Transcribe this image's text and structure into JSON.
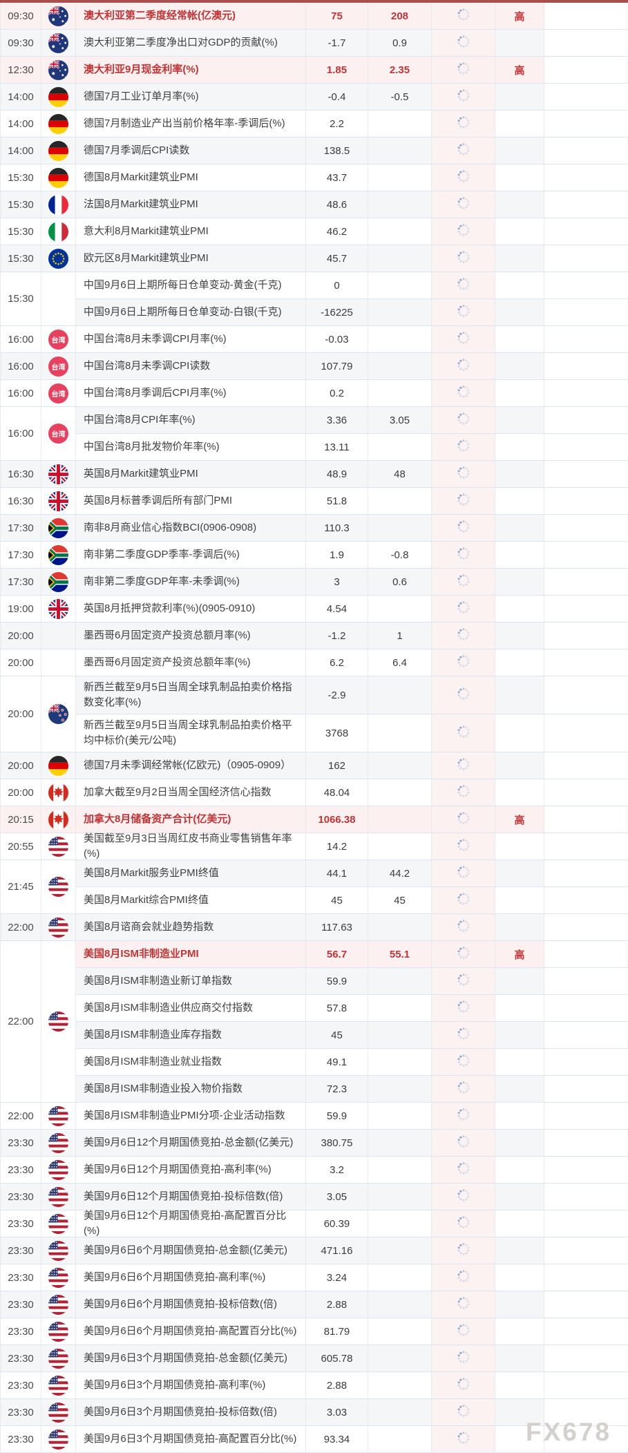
{
  "watermark": "FX678",
  "importance_high_label": "高",
  "colors": {
    "accent_red": "#c13435",
    "highlight_row_bg": "#fdf0f0",
    "spinner_column_bg": "#fcf2f2",
    "top_border": "#a94f4f",
    "row_border": "#dbe4f0",
    "stripe_bg": "#f5f6f7",
    "taiwan_badge_bg": "#e7415f"
  },
  "icons": {
    "spinner": "loading-spinner-icon"
  },
  "table": {
    "groups": [
      {
        "time": "09:30",
        "flag": "flag-australia",
        "rows": [
          {
            "event": "澳大利亚第二季度经常帐(亿澳元)",
            "previous": "75",
            "forecast": "208",
            "importance": "高",
            "highlight": true
          }
        ]
      },
      {
        "time": "09:30",
        "flag": "flag-australia",
        "rows": [
          {
            "event": "澳大利亚第二季度净出口对GDP的贡献(%)",
            "previous": "-1.7",
            "forecast": "0.9",
            "importance": "",
            "highlight": false
          }
        ]
      },
      {
        "time": "12:30",
        "flag": "flag-australia",
        "rows": [
          {
            "event": "澳大利亚9月现金利率(%)",
            "previous": "1.85",
            "forecast": "2.35",
            "importance": "高",
            "highlight": true
          }
        ]
      },
      {
        "time": "14:00",
        "flag": "flag-germany",
        "rows": [
          {
            "event": "德国7月工业订单月率(%)",
            "previous": "-0.4",
            "forecast": "-0.5",
            "importance": "",
            "highlight": false
          }
        ]
      },
      {
        "time": "14:00",
        "flag": "flag-germany",
        "rows": [
          {
            "event": "德国7月制造业产出当前价格年率-季调后(%)",
            "previous": "2.2",
            "forecast": "",
            "importance": "",
            "highlight": false
          }
        ]
      },
      {
        "time": "14:00",
        "flag": "flag-germany",
        "rows": [
          {
            "event": "德国7月季调后CPI读数",
            "previous": "138.5",
            "forecast": "",
            "importance": "",
            "highlight": false
          }
        ]
      },
      {
        "time": "15:30",
        "flag": "flag-germany",
        "rows": [
          {
            "event": "德国8月Markit建筑业PMI",
            "previous": "43.7",
            "forecast": "",
            "importance": "",
            "highlight": false
          }
        ]
      },
      {
        "time": "15:30",
        "flag": "flag-france",
        "rows": [
          {
            "event": "法国8月Markit建筑业PMI",
            "previous": "48.6",
            "forecast": "",
            "importance": "",
            "highlight": false
          }
        ]
      },
      {
        "time": "15:30",
        "flag": "flag-italy",
        "rows": [
          {
            "event": "意大利8月Markit建筑业PMI",
            "previous": "46.2",
            "forecast": "",
            "importance": "",
            "highlight": false
          }
        ]
      },
      {
        "time": "15:30",
        "flag": "flag-eu",
        "rows": [
          {
            "event": "欧元区8月Markit建筑业PMI",
            "previous": "45.7",
            "forecast": "",
            "importance": "",
            "highlight": false
          }
        ]
      },
      {
        "time": "15:30",
        "flag": "none",
        "rows": [
          {
            "event": "中国9月6日上期所每日仓单变动-黄金(千克)",
            "previous": "0",
            "forecast": "",
            "importance": "",
            "highlight": false
          },
          {
            "event": "中国9月6日上期所每日仓单变动-白银(千克)",
            "previous": "-16225",
            "forecast": "",
            "importance": "",
            "highlight": false
          }
        ]
      },
      {
        "time": "16:00",
        "flag": "badge-taiwan",
        "rows": [
          {
            "event": "中国台湾8月未季调CPI月率(%)",
            "previous": "-0.03",
            "forecast": "",
            "importance": "",
            "highlight": false
          }
        ]
      },
      {
        "time": "16:00",
        "flag": "badge-taiwan",
        "rows": [
          {
            "event": "中国台湾8月未季调CPI读数",
            "previous": "107.79",
            "forecast": "",
            "importance": "",
            "highlight": false
          }
        ]
      },
      {
        "time": "16:00",
        "flag": "badge-taiwan",
        "rows": [
          {
            "event": "中国台湾8月季调后CPI月率(%)",
            "previous": "0.2",
            "forecast": "",
            "importance": "",
            "highlight": false
          }
        ]
      },
      {
        "time": "16:00",
        "flag": "badge-taiwan",
        "rows": [
          {
            "event": "中国台湾8月CPI年率(%)",
            "previous": "3.36",
            "forecast": "3.05",
            "importance": "",
            "highlight": false
          },
          {
            "event": "中国台湾8月批发物价年率(%)",
            "previous": "13.11",
            "forecast": "",
            "importance": "",
            "highlight": false
          }
        ]
      },
      {
        "time": "16:30",
        "flag": "flag-uk",
        "rows": [
          {
            "event": "英国8月Markit建筑业PMI",
            "previous": "48.9",
            "forecast": "48",
            "importance": "",
            "highlight": false
          }
        ]
      },
      {
        "time": "16:30",
        "flag": "flag-uk",
        "rows": [
          {
            "event": "英国8月标普季调后所有部门PMI",
            "previous": "51.8",
            "forecast": "",
            "importance": "",
            "highlight": false
          }
        ]
      },
      {
        "time": "17:30",
        "flag": "flag-south-africa",
        "rows": [
          {
            "event": "南非8月商业信心指数BCI(0906-0908)",
            "previous": "110.3",
            "forecast": "",
            "importance": "",
            "highlight": false
          }
        ]
      },
      {
        "time": "17:30",
        "flag": "flag-south-africa",
        "rows": [
          {
            "event": "南非第二季度GDP季率-季调后(%)",
            "previous": "1.9",
            "forecast": "-0.8",
            "importance": "",
            "highlight": false
          }
        ]
      },
      {
        "time": "17:30",
        "flag": "flag-south-africa",
        "rows": [
          {
            "event": "南非第二季度GDP年率-未季调(%)",
            "previous": "3",
            "forecast": "0.6",
            "importance": "",
            "highlight": false
          }
        ]
      },
      {
        "time": "19:00",
        "flag": "flag-uk",
        "rows": [
          {
            "event": "英国8月抵押贷款利率(%)(0905-0910)",
            "previous": "4.54",
            "forecast": "",
            "importance": "",
            "highlight": false
          }
        ]
      },
      {
        "time": "20:00",
        "flag": "none",
        "rows": [
          {
            "event": "墨西哥6月固定资产投资总额月率(%)",
            "previous": "-1.2",
            "forecast": "1",
            "importance": "",
            "highlight": false
          }
        ]
      },
      {
        "time": "20:00",
        "flag": "none",
        "rows": [
          {
            "event": "墨西哥6月固定资产投资总额年率(%)",
            "previous": "6.2",
            "forecast": "6.4",
            "importance": "",
            "highlight": false
          }
        ]
      },
      {
        "time": "20:00",
        "flag": "flag-new-zealand",
        "rows": [
          {
            "event": "新西兰截至9月5日当周全球乳制品拍卖价格指数变化率(%)",
            "previous": "-2.9",
            "forecast": "",
            "importance": "",
            "highlight": false,
            "tall": true
          },
          {
            "event": "新西兰截至9月5日当周全球乳制品拍卖价格平均中标价(美元/公吨)",
            "previous": "3768",
            "forecast": "",
            "importance": "",
            "highlight": false,
            "tall": true
          }
        ]
      },
      {
        "time": "20:00",
        "flag": "flag-germany",
        "rows": [
          {
            "event": "德国7月未季调经常帐(亿欧元)（0905-0909）",
            "previous": "162",
            "forecast": "",
            "importance": "",
            "highlight": false
          }
        ]
      },
      {
        "time": "20:00",
        "flag": "flag-canada",
        "rows": [
          {
            "event": "加拿大截至9月2日当周全国经济信心指数",
            "previous": "48.04",
            "forecast": "",
            "importance": "",
            "highlight": false
          }
        ]
      },
      {
        "time": "20:15",
        "flag": "flag-canada",
        "rows": [
          {
            "event": "加拿大8月储备资产合计(亿美元)",
            "previous": "1066.38",
            "forecast": "",
            "importance": "高",
            "highlight": true
          }
        ]
      },
      {
        "time": "20:55",
        "flag": "flag-us",
        "rows": [
          {
            "event": "美国截至9月3日当周红皮书商业零售销售年率(%)",
            "previous": "14.2",
            "forecast": "",
            "importance": "",
            "highlight": false
          }
        ]
      },
      {
        "time": "21:45",
        "flag": "flag-us",
        "rows": [
          {
            "event": "美国8月Markit服务业PMI终值",
            "previous": "44.1",
            "forecast": "44.2",
            "importance": "",
            "highlight": false
          },
          {
            "event": "美国8月Markit综合PMI终值",
            "previous": "45",
            "forecast": "45",
            "importance": "",
            "highlight": false
          }
        ]
      },
      {
        "time": "22:00",
        "flag": "flag-us",
        "rows": [
          {
            "event": "美国8月谘商会就业趋势指数",
            "previous": "117.63",
            "forecast": "",
            "importance": "",
            "highlight": false
          }
        ]
      },
      {
        "time": "22:00",
        "flag": "flag-us",
        "rows": [
          {
            "event": "美国8月ISM非制造业PMI",
            "previous": "56.7",
            "forecast": "55.1",
            "importance": "高",
            "highlight": true
          },
          {
            "event": "美国8月ISM非制造业新订单指数",
            "previous": "59.9",
            "forecast": "",
            "importance": "",
            "highlight": false
          },
          {
            "event": "美国8月ISM非制造业供应商交付指数",
            "previous": "57.8",
            "forecast": "",
            "importance": "",
            "highlight": false
          },
          {
            "event": "美国8月ISM非制造业库存指数",
            "previous": "45",
            "forecast": "",
            "importance": "",
            "highlight": false
          },
          {
            "event": "美国8月ISM非制造业就业指数",
            "previous": "49.1",
            "forecast": "",
            "importance": "",
            "highlight": false
          },
          {
            "event": "美国8月ISM非制造业投入物价指数",
            "previous": "72.3",
            "forecast": "",
            "importance": "",
            "highlight": false
          }
        ]
      },
      {
        "time": "22:00",
        "flag": "flag-us",
        "rows": [
          {
            "event": "美国8月ISM非制造业PMI分项-企业活动指数",
            "previous": "59.9",
            "forecast": "",
            "importance": "",
            "highlight": false
          }
        ]
      },
      {
        "time": "23:30",
        "flag": "flag-us",
        "rows": [
          {
            "event": "美国9月6日12个月期国债竞拍-总金额(亿美元)",
            "previous": "380.75",
            "forecast": "",
            "importance": "",
            "highlight": false
          }
        ]
      },
      {
        "time": "23:30",
        "flag": "flag-us",
        "rows": [
          {
            "event": "美国9月6日12个月期国债竞拍-高利率(%)",
            "previous": "3.2",
            "forecast": "",
            "importance": "",
            "highlight": false
          }
        ]
      },
      {
        "time": "23:30",
        "flag": "flag-us",
        "rows": [
          {
            "event": "美国9月6日12个月期国债竞拍-投标倍数(倍)",
            "previous": "3.05",
            "forecast": "",
            "importance": "",
            "highlight": false
          }
        ]
      },
      {
        "time": "23:30",
        "flag": "flag-us",
        "rows": [
          {
            "event": "美国9月6日12个月期国债竞拍-高配置百分比(%)",
            "previous": "60.39",
            "forecast": "",
            "importance": "",
            "highlight": false
          }
        ]
      },
      {
        "time": "23:30",
        "flag": "flag-us",
        "rows": [
          {
            "event": "美国9月6日6个月期国债竞拍-总金额(亿美元)",
            "previous": "471.16",
            "forecast": "",
            "importance": "",
            "highlight": false
          }
        ]
      },
      {
        "time": "23:30",
        "flag": "flag-us",
        "rows": [
          {
            "event": "美国9月6日6个月期国债竞拍-高利率(%)",
            "previous": "3.24",
            "forecast": "",
            "importance": "",
            "highlight": false
          }
        ]
      },
      {
        "time": "23:30",
        "flag": "flag-us",
        "rows": [
          {
            "event": "美国9月6日6个月期国债竞拍-投标倍数(倍)",
            "previous": "2.88",
            "forecast": "",
            "importance": "",
            "highlight": false
          }
        ]
      },
      {
        "time": "23:30",
        "flag": "flag-us",
        "rows": [
          {
            "event": "美国9月6日6个月期国债竞拍-高配置百分比(%)",
            "previous": "81.79",
            "forecast": "",
            "importance": "",
            "highlight": false
          }
        ]
      },
      {
        "time": "23:30",
        "flag": "flag-us",
        "rows": [
          {
            "event": "美国9月6日3个月期国债竞拍-总金额(亿美元)",
            "previous": "605.78",
            "forecast": "",
            "importance": "",
            "highlight": false
          }
        ]
      },
      {
        "time": "23:30",
        "flag": "flag-us",
        "rows": [
          {
            "event": "美国9月6日3个月期国债竞拍-高利率(%)",
            "previous": "2.88",
            "forecast": "",
            "importance": "",
            "highlight": false
          }
        ]
      },
      {
        "time": "23:30",
        "flag": "flag-us",
        "rows": [
          {
            "event": "美国9月6日3个月期国债竞拍-投标倍数(倍)",
            "previous": "3.03",
            "forecast": "",
            "importance": "",
            "highlight": false
          }
        ]
      },
      {
        "time": "23:30",
        "flag": "flag-us",
        "rows": [
          {
            "event": "美国9月6日3个月期国债竞拍-高配置百分比(%)",
            "previous": "93.34",
            "forecast": "",
            "importance": "",
            "highlight": false
          }
        ]
      }
    ]
  }
}
